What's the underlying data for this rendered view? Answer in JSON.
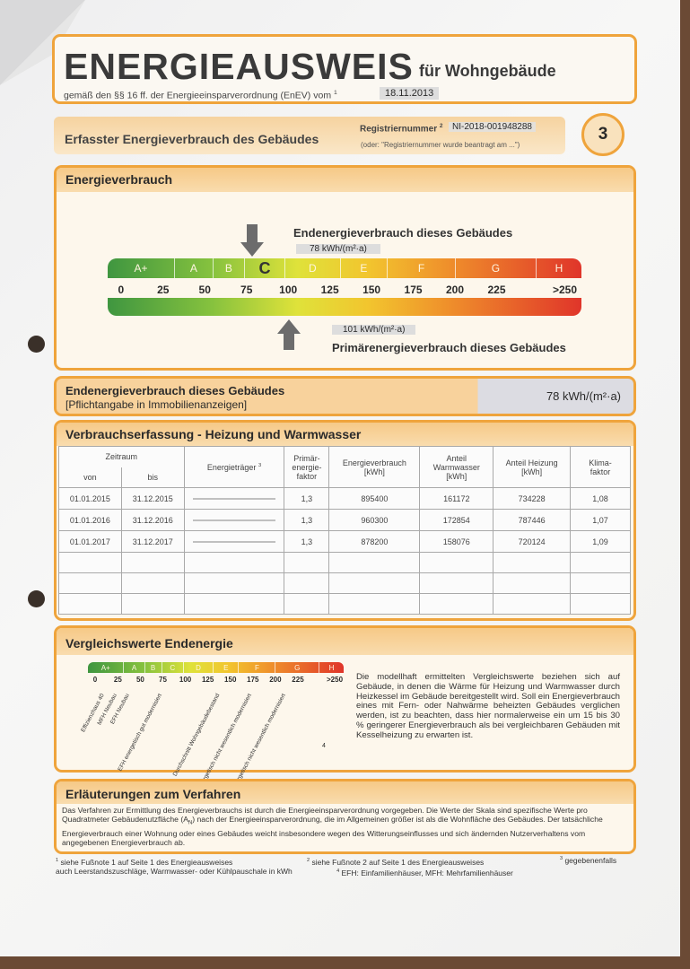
{
  "header": {
    "title": "ENERGIEAUSWEIS",
    "subtitle": "für Wohngebäude",
    "basis": "gemäß den §§ 16 ff. der Energieeinsparverordnung (EnEV) vom",
    "basis_footnote": "1",
    "date": "18.11.2013"
  },
  "section": {
    "title": "Erfasster Energieverbrauch des Gebäudes",
    "registration_label": "Registriernummer",
    "registration_footnote": "2",
    "registration_number": "NI-2018-001948288",
    "registration_note": "(oder: \"Registriernummer wurde beantragt am ...\")",
    "page_number": "3"
  },
  "consumption": {
    "title": "Energieverbrauch",
    "final_label": "Endenergieverbrauch dieses Gebäudes",
    "final_value": "78 kWh/(m²·a)",
    "classes": [
      "A+",
      "A",
      "B",
      "C",
      "D",
      "E",
      "F",
      "G",
      "H"
    ],
    "scale": [
      "0",
      "25",
      "50",
      "75",
      "100",
      "125",
      "150",
      "175",
      "200",
      "225",
      ">250"
    ],
    "primary_value": "101 kWh/(m²·a)",
    "primary_label": "Primärenergieverbrauch dieses Gebäudes"
  },
  "mandatory": {
    "label": "Endenergieverbrauch dieses Gebäudes",
    "note": "[Pflichtangabe in Immobilienanzeigen]",
    "value": "78 kWh/(m²·a)"
  },
  "records": {
    "title": "Verbrauchserfassung - Heizung und Warmwasser",
    "header": {
      "period": "Zeitraum",
      "from": "von",
      "to": "bis",
      "carrier": "Energieträger",
      "carrier_footnote": "3",
      "primary_factor": "Primär-energie-faktor",
      "consumption": "Energieverbrauch [kWh]",
      "hot_water": "Anteil Warmwasser [kWh]",
      "heating": "Anteil Heizung [kWh]",
      "climate_factor": "Klima-faktor"
    },
    "rows": [
      [
        "01.01.2015",
        "31.12.2015",
        "1,3",
        "895400",
        "161172",
        "734228",
        "1,08"
      ],
      [
        "01.01.2016",
        "31.12.2016",
        "1,3",
        "960300",
        "172854",
        "787446",
        "1,07"
      ],
      [
        "01.01.2017",
        "31.12.2017",
        "1,3",
        "878200",
        "158076",
        "720124",
        "1,09"
      ]
    ]
  },
  "comparison": {
    "title": "Vergleichswerte Endenergie",
    "classes": [
      "A+",
      "A",
      "B",
      "C",
      "D",
      "E",
      "F",
      "G",
      "H"
    ],
    "scale": [
      "0",
      "25",
      "50",
      "75",
      "100",
      "125",
      "150",
      "175",
      "200",
      "225",
      ">250"
    ],
    "references": [
      "Effizienzhaus 40",
      "MFH Neubau",
      "EFH Neubau",
      "EFH energetisch gut modernisiert",
      "Durchschnitt Wohngebäudebestand",
      "MFH energetisch nicht wesentlich modernisiert",
      "EFH energetisch nicht wesentlich modernisiert"
    ],
    "footnote": "4",
    "text": "Die modellhaft ermittelten Vergleichswerte beziehen sich auf Gebäude, in denen die Wärme für Heizung und Warmwasser durch Heizkessel im Gebäude bereitgestellt wird. Soll ein Energieverbrauch eines mit Fern- oder Nahwärme beheizten Gebäudes verglichen werden, ist zu beachten, dass hier normalerweise ein um 15 bis 30 % geringerer Energieverbrauch als bei vergleichbaren Gebäuden mit Kesselheizung zu erwarten ist."
  },
  "explanation": {
    "title": "Erläuterungen zum Verfahren",
    "text_before": "Das Verfahren zur Ermittlung des Energieverbrauchs ist durch die Energieeinsparverordnung vorgegeben. Die Werte der Skala sind spezifische Werte pro Quadratmeter Gebäudenutzfläche (A",
    "subscript": "N",
    "text_after": ") nach der Energieeinsparverordnung, die im Allgemeinen größer ist als die Wohnfläche des Gebäudes. Der tatsächliche Energieverbrauch einer Wohnung oder eines Gebäudes weicht insbesondere wegen des Witterungseinflusses und sich ändernden Nutzerverhaltens vom angegebenen Energieverbrauch ab."
  },
  "footnotes": {
    "n1": "1",
    "t1": "siehe Fußnote 1 auf Seite 1 des Energieausweises",
    "n2": "2",
    "t2": "siehe Fußnote 2 auf Seite 1 des Energieausweises",
    "n3": "3",
    "t3": "gegebenenfalls",
    "t2b": "auch Leerstandszuschläge, Warmwasser- oder Kühlpauschale in kWh",
    "n4": "4",
    "t4": "EFH: Einfamilienhäuser, MFH: Mehrfamilienhäuser"
  }
}
